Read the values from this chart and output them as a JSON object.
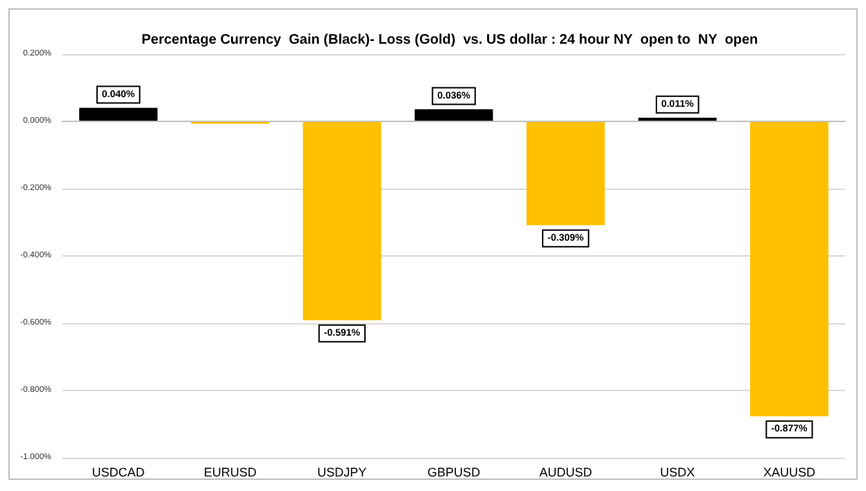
{
  "chart_data": {
    "type": "bar",
    "title": "Percentage Currency  Gain (Black)- Loss (Gold)  vs. US dollar : 24 hour NY  open to  NY  open",
    "categories": [
      "USDCAD",
      "EURUSD",
      "USDJPY",
      "GBPUSD",
      "AUDUSD",
      "USDX",
      "XAUUSD"
    ],
    "values": [
      0.04,
      -0.007,
      -0.591,
      0.036,
      -0.309,
      0.011,
      -0.877
    ],
    "colors": [
      "#000000",
      "#ffc000",
      "#ffc000",
      "#000000",
      "#ffc000",
      "#000000",
      "#ffc000"
    ],
    "value_labels": [
      "0.040%",
      null,
      "-0.591%",
      "0.036%",
      "-0.309%",
      "0.011%",
      "-0.877%"
    ],
    "ylim": [
      -1.0,
      0.2
    ],
    "yticks": [
      {
        "value": -1.0,
        "label": "-1.000%"
      },
      {
        "value": -0.8,
        "label": "-0.800%"
      },
      {
        "value": -0.6,
        "label": "-0.600%"
      },
      {
        "value": -0.4,
        "label": "-0.400%"
      },
      {
        "value": -0.2,
        "label": "-0.200%"
      },
      {
        "value": 0,
        "label": "0.000%"
      },
      {
        "value": 0.2,
        "label": "0.200%"
      }
    ],
    "grid": "y"
  }
}
